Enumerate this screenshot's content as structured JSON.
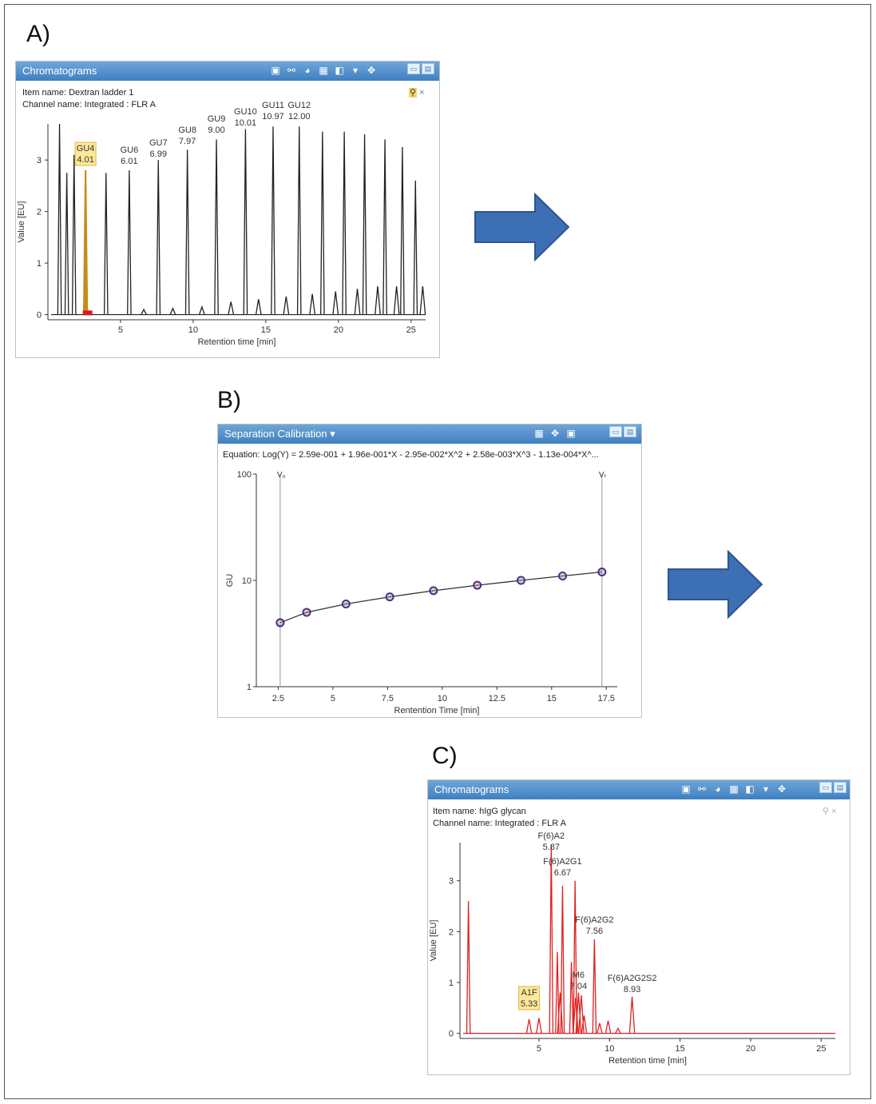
{
  "panels": {
    "a": {
      "letter": "A)"
    },
    "b": {
      "letter": "B)"
    },
    "c": {
      "letter": "C)"
    }
  },
  "window_a": {
    "title": "Chromatograms",
    "item_name": "Item name: Dextran ladder 1",
    "channel_name": "Channel name: Integrated : FLR A",
    "icons": [
      "zoom-icon",
      "link-icon",
      "palette-icon",
      "table-icon",
      "layers-icon",
      "chevron-down-icon",
      "move-icon"
    ],
    "pin_icons": [
      "pin-icon",
      "close-icon"
    ],
    "close_glyph": "×"
  },
  "window_b": {
    "title": "Separation Calibration ▾",
    "equation": "Equation: Log(Y) = 2.59e-001 + 1.96e-001*X - 2.95e-002*X^2 + 2.58e-003*X^3 - 1.13e-004*X^...",
    "icons": [
      "table-icon",
      "move-icon",
      "zoom-icon"
    ],
    "v0_label": "V₀",
    "vt_label": "Vₜ"
  },
  "window_c": {
    "title": "Chromatograms",
    "item_name": "Item name: hIgG glycan",
    "channel_name": "Channel name: Integrated : FLR A",
    "icons": [
      "zoom-icon",
      "link-icon",
      "palette-icon",
      "table-icon",
      "layers-icon",
      "chevron-down-icon",
      "move-icon"
    ],
    "pin_icons": [
      "pin-icon",
      "close-icon"
    ],
    "close_glyph": "×"
  },
  "colors": {
    "titlebar": "#4a8ccb",
    "trace_a": "#222222",
    "trace_c": "#e02020",
    "arrow": "#3d6fb5",
    "highlight": "#fde89a"
  },
  "chart_data": [
    {
      "type": "line",
      "xlabel": "Retention time [min]",
      "ylabel": "Value [EU]",
      "xlim": [
        0,
        26
      ],
      "ylim": [
        -0.1,
        3.7
      ],
      "xticks": [
        5,
        10,
        15,
        20,
        25
      ],
      "yticks": [
        0,
        1,
        2,
        3
      ],
      "peaks": [
        {
          "x": 0.8,
          "y": 3.7
        },
        {
          "x": 1.3,
          "y": 2.75
        },
        {
          "x": 1.8,
          "y": 3.1
        },
        {
          "x": 2.59,
          "y": 2.8
        },
        {
          "x": 4.0,
          "y": 2.75
        },
        {
          "x": 5.6,
          "y": 2.8
        },
        {
          "x": 7.6,
          "y": 3.0
        },
        {
          "x": 9.6,
          "y": 3.2
        },
        {
          "x": 11.6,
          "y": 3.4
        },
        {
          "x": 13.6,
          "y": 3.6
        },
        {
          "x": 15.5,
          "y": 3.65
        },
        {
          "x": 17.3,
          "y": 3.65
        },
        {
          "x": 18.9,
          "y": 3.55
        },
        {
          "x": 20.4,
          "y": 3.55
        },
        {
          "x": 21.8,
          "y": 3.5
        },
        {
          "x": 23.2,
          "y": 3.4
        },
        {
          "x": 24.4,
          "y": 3.25
        },
        {
          "x": 25.3,
          "y": 2.6
        }
      ],
      "small_peaks": [
        {
          "x": 6.6,
          "y": 0.1
        },
        {
          "x": 8.6,
          "y": 0.12
        },
        {
          "x": 10.6,
          "y": 0.15
        },
        {
          "x": 12.6,
          "y": 0.25
        },
        {
          "x": 14.5,
          "y": 0.3
        },
        {
          "x": 16.4,
          "y": 0.35
        },
        {
          "x": 18.2,
          "y": 0.4
        },
        {
          "x": 19.8,
          "y": 0.45
        },
        {
          "x": 21.3,
          "y": 0.5
        },
        {
          "x": 22.7,
          "y": 0.55
        },
        {
          "x": 24.0,
          "y": 0.55
        },
        {
          "x": 25.8,
          "y": 0.55
        }
      ],
      "labels": [
        {
          "name": "GU4",
          "value": "4.01",
          "x": 2.59,
          "highlight": true
        },
        {
          "name": "GU6",
          "value": "6.01",
          "x": 5.6
        },
        {
          "name": "GU7",
          "value": "6.99",
          "x": 7.6
        },
        {
          "name": "GU8",
          "value": "7.97",
          "x": 9.6
        },
        {
          "name": "GU9",
          "value": "9.00",
          "x": 11.6
        },
        {
          "name": "GU10",
          "value": "10.01",
          "x": 13.6
        },
        {
          "name": "GU11",
          "value": "10.97",
          "x": 15.5
        },
        {
          "name": "GU12",
          "value": "12.00",
          "x": 17.3
        }
      ]
    },
    {
      "type": "scatter",
      "xlabel": "Rentention Time [min]",
      "ylabel": "GU",
      "scale_y": "log",
      "xlim": [
        1.5,
        18.0
      ],
      "ylim": [
        1,
        100
      ],
      "xticks": [
        "2.5",
        "5",
        "7.5",
        "10",
        "12.5",
        "15",
        "17.5"
      ],
      "yticks": [
        "1",
        "10",
        "100"
      ],
      "x": [
        2.59,
        3.8,
        5.6,
        7.6,
        9.6,
        11.6,
        13.6,
        15.5,
        17.3
      ],
      "y": [
        4,
        5,
        6,
        7,
        8,
        9,
        10,
        11,
        12
      ],
      "v0_x": 2.59,
      "vt_x": 17.3
    },
    {
      "type": "line",
      "xlabel": "Retention time [min]",
      "ylabel": "Value [EU]",
      "xlim": [
        -0.6,
        26
      ],
      "ylim": [
        -0.1,
        3.75
      ],
      "xticks": [
        5,
        10,
        15,
        20,
        25
      ],
      "yticks": [
        0,
        1,
        2,
        3
      ],
      "peaks": [
        {
          "x": 0.0,
          "y": 2.6
        },
        {
          "x": 4.3,
          "y": 0.28
        },
        {
          "x": 5.0,
          "y": 0.3
        },
        {
          "x": 5.87,
          "y": 3.7
        },
        {
          "x": 6.3,
          "y": 1.6
        },
        {
          "x": 6.5,
          "y": 0.8
        },
        {
          "x": 6.67,
          "y": 2.9
        },
        {
          "x": 7.56,
          "y": 3.0
        },
        {
          "x": 7.3,
          "y": 1.4
        },
        {
          "x": 7.6,
          "y": 0.7
        },
        {
          "x": 7.8,
          "y": 0.8
        },
        {
          "x": 8.0,
          "y": 0.75
        },
        {
          "x": 8.2,
          "y": 0.35
        },
        {
          "x": 8.93,
          "y": 1.85
        },
        {
          "x": 9.3,
          "y": 0.2
        },
        {
          "x": 9.9,
          "y": 0.25
        },
        {
          "x": 10.6,
          "y": 0.1
        },
        {
          "x": 11.6,
          "y": 0.72
        }
      ],
      "labels": [
        {
          "name": "A1F",
          "value": "5.33",
          "x": 4.3,
          "highlight": true
        },
        {
          "name": "F(6)A2",
          "value": "5.87",
          "x": 5.87
        },
        {
          "name": "F(6)A2G1",
          "value": "6.67",
          "x": 6.67
        },
        {
          "name": "F(6)A2G2",
          "value": "7.56",
          "x": 8.93
        },
        {
          "name": "M6",
          "value": "7.04",
          "x": 7.8
        },
        {
          "name": "F(6)A2G2S2",
          "value": "8.93",
          "x": 11.6
        }
      ]
    }
  ]
}
